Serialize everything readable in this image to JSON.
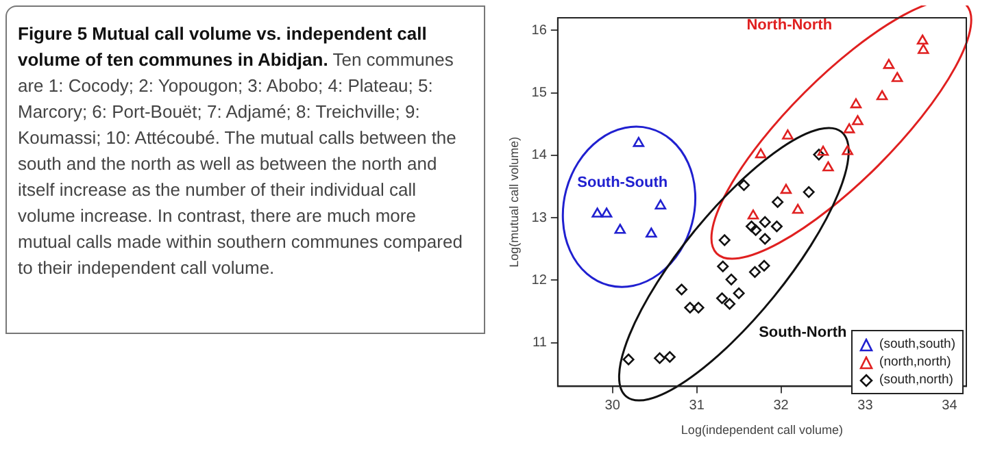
{
  "chart_data": {
    "type": "scatter",
    "title": "Figure 5  Mutual call volume vs. independent call volume of ten communes in Abidjan.",
    "subtitle": "Ten communes are 1: Cocody; 2: Yopougon; 3: Abobo; 4: Plateau; 5: Marcory; 6: Port-Bouët; 7: Adjamé; 8: Treichville; 9: Koumassi; 10: Attécoubé. The mutual calls between the south and the north as well as between the north and itself increase as the number of their individual call volume increase. In contrast, there are much more mutual calls made within southern communes compared to their independent call volume.",
    "xlabel": "Log(independent call volume)",
    "ylabel": "Log(mutual call volume)",
    "xlim": [
      29.35,
      34.2
    ],
    "ylim": [
      10.3,
      16.2
    ],
    "xticks": [
      30,
      31,
      32,
      33,
      34
    ],
    "yticks": [
      11,
      12,
      13,
      14,
      15,
      16
    ],
    "grid": false,
    "legend": "bottom right",
    "series": [
      {
        "name": "(south,south)",
        "color": "#2020d0",
        "marker": "triangle",
        "x": [
          30.31,
          30.57,
          29.82,
          29.93,
          30.09,
          30.46
        ],
        "values": [
          14.19,
          13.19,
          13.06,
          13.06,
          12.8,
          12.74
        ]
      },
      {
        "name": "(north,north)",
        "color": "#e02020",
        "marker": "triangle",
        "x": [
          33.68,
          33.69,
          33.28,
          33.38,
          33.2,
          32.89,
          32.91,
          32.81,
          32.79,
          32.08,
          31.76,
          32.5,
          32.56,
          32.06,
          32.2,
          31.67
        ],
        "values": [
          15.83,
          15.68,
          15.44,
          15.23,
          14.94,
          14.81,
          14.54,
          14.41,
          14.06,
          14.31,
          14.01,
          14.05,
          13.8,
          13.44,
          13.12,
          13.03
        ]
      },
      {
        "name": "(south,north)",
        "color": "#111111",
        "marker": "diamond",
        "x": [
          32.45,
          31.56,
          32.33,
          31.96,
          31.65,
          31.7,
          31.81,
          31.95,
          31.81,
          31.33,
          31.31,
          31.8,
          31.69,
          31.41,
          31.5,
          31.3,
          31.39,
          30.82,
          30.92,
          31.02,
          30.19,
          30.56,
          30.68
        ],
        "values": [
          14.01,
          13.52,
          13.41,
          13.25,
          12.86,
          12.8,
          12.93,
          12.86,
          12.66,
          12.64,
          12.22,
          12.23,
          12.13,
          12.01,
          11.79,
          11.71,
          11.62,
          11.85,
          11.56,
          11.56,
          10.73,
          10.75,
          10.77
        ]
      }
    ],
    "annotations": [
      "South-South",
      "North-North",
      "South-North"
    ]
  }
}
